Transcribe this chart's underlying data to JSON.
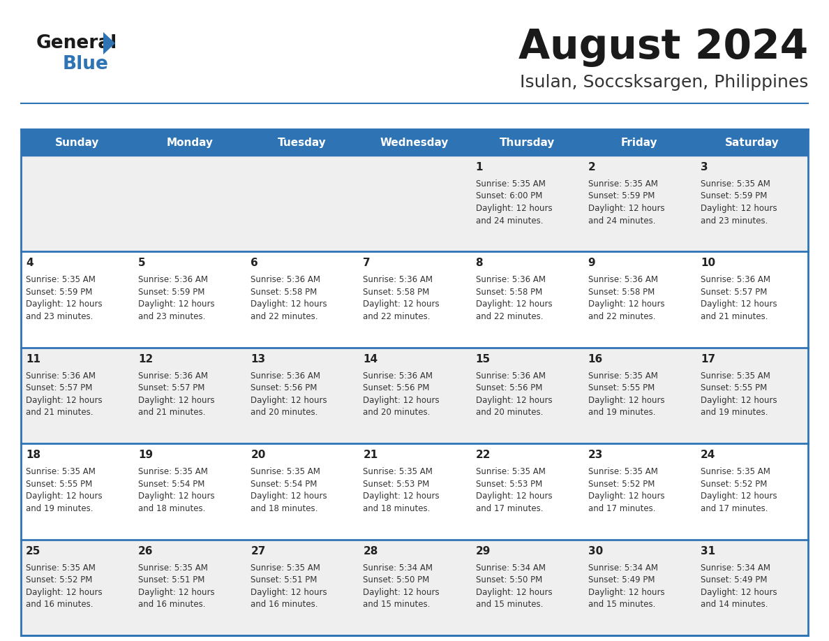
{
  "title": "August 2024",
  "subtitle": "Isulan, Soccsksargen, Philippines",
  "days_of_week": [
    "Sunday",
    "Monday",
    "Tuesday",
    "Wednesday",
    "Thursday",
    "Friday",
    "Saturday"
  ],
  "header_bg": "#2E74B5",
  "header_text": "#FFFFFF",
  "row_bg_odd": "#EFEFEF",
  "row_bg_even": "#FFFFFF",
  "cell_border": "#2E74B5",
  "day_num_color": "#222222",
  "text_color": "#333333",
  "title_color": "#1a1a1a",
  "subtitle_color": "#333333",
  "logo_general_color": "#1a1a1a",
  "logo_blue_color": "#2E74B5",
  "logo_triangle_color": "#2E74B5",
  "calendar": [
    [
      {
        "day": null,
        "sunrise": null,
        "sunset": null,
        "daylight_hours": null,
        "daylight_mins": null
      },
      {
        "day": null,
        "sunrise": null,
        "sunset": null,
        "daylight_hours": null,
        "daylight_mins": null
      },
      {
        "day": null,
        "sunrise": null,
        "sunset": null,
        "daylight_hours": null,
        "daylight_mins": null
      },
      {
        "day": null,
        "sunrise": null,
        "sunset": null,
        "daylight_hours": null,
        "daylight_mins": null
      },
      {
        "day": 1,
        "sunrise": "5:35 AM",
        "sunset": "6:00 PM",
        "daylight_hours": "12 hours",
        "daylight_mins": "and 24 minutes."
      },
      {
        "day": 2,
        "sunrise": "5:35 AM",
        "sunset": "5:59 PM",
        "daylight_hours": "12 hours",
        "daylight_mins": "and 24 minutes."
      },
      {
        "day": 3,
        "sunrise": "5:35 AM",
        "sunset": "5:59 PM",
        "daylight_hours": "12 hours",
        "daylight_mins": "and 23 minutes."
      }
    ],
    [
      {
        "day": 4,
        "sunrise": "5:35 AM",
        "sunset": "5:59 PM",
        "daylight_hours": "12 hours",
        "daylight_mins": "and 23 minutes."
      },
      {
        "day": 5,
        "sunrise": "5:36 AM",
        "sunset": "5:59 PM",
        "daylight_hours": "12 hours",
        "daylight_mins": "and 23 minutes."
      },
      {
        "day": 6,
        "sunrise": "5:36 AM",
        "sunset": "5:58 PM",
        "daylight_hours": "12 hours",
        "daylight_mins": "and 22 minutes."
      },
      {
        "day": 7,
        "sunrise": "5:36 AM",
        "sunset": "5:58 PM",
        "daylight_hours": "12 hours",
        "daylight_mins": "and 22 minutes."
      },
      {
        "day": 8,
        "sunrise": "5:36 AM",
        "sunset": "5:58 PM",
        "daylight_hours": "12 hours",
        "daylight_mins": "and 22 minutes."
      },
      {
        "day": 9,
        "sunrise": "5:36 AM",
        "sunset": "5:58 PM",
        "daylight_hours": "12 hours",
        "daylight_mins": "and 22 minutes."
      },
      {
        "day": 10,
        "sunrise": "5:36 AM",
        "sunset": "5:57 PM",
        "daylight_hours": "12 hours",
        "daylight_mins": "and 21 minutes."
      }
    ],
    [
      {
        "day": 11,
        "sunrise": "5:36 AM",
        "sunset": "5:57 PM",
        "daylight_hours": "12 hours",
        "daylight_mins": "and 21 minutes."
      },
      {
        "day": 12,
        "sunrise": "5:36 AM",
        "sunset": "5:57 PM",
        "daylight_hours": "12 hours",
        "daylight_mins": "and 21 minutes."
      },
      {
        "day": 13,
        "sunrise": "5:36 AM",
        "sunset": "5:56 PM",
        "daylight_hours": "12 hours",
        "daylight_mins": "and 20 minutes."
      },
      {
        "day": 14,
        "sunrise": "5:36 AM",
        "sunset": "5:56 PM",
        "daylight_hours": "12 hours",
        "daylight_mins": "and 20 minutes."
      },
      {
        "day": 15,
        "sunrise": "5:36 AM",
        "sunset": "5:56 PM",
        "daylight_hours": "12 hours",
        "daylight_mins": "and 20 minutes."
      },
      {
        "day": 16,
        "sunrise": "5:35 AM",
        "sunset": "5:55 PM",
        "daylight_hours": "12 hours",
        "daylight_mins": "and 19 minutes."
      },
      {
        "day": 17,
        "sunrise": "5:35 AM",
        "sunset": "5:55 PM",
        "daylight_hours": "12 hours",
        "daylight_mins": "and 19 minutes."
      }
    ],
    [
      {
        "day": 18,
        "sunrise": "5:35 AM",
        "sunset": "5:55 PM",
        "daylight_hours": "12 hours",
        "daylight_mins": "and 19 minutes."
      },
      {
        "day": 19,
        "sunrise": "5:35 AM",
        "sunset": "5:54 PM",
        "daylight_hours": "12 hours",
        "daylight_mins": "and 18 minutes."
      },
      {
        "day": 20,
        "sunrise": "5:35 AM",
        "sunset": "5:54 PM",
        "daylight_hours": "12 hours",
        "daylight_mins": "and 18 minutes."
      },
      {
        "day": 21,
        "sunrise": "5:35 AM",
        "sunset": "5:53 PM",
        "daylight_hours": "12 hours",
        "daylight_mins": "and 18 minutes."
      },
      {
        "day": 22,
        "sunrise": "5:35 AM",
        "sunset": "5:53 PM",
        "daylight_hours": "12 hours",
        "daylight_mins": "and 17 minutes."
      },
      {
        "day": 23,
        "sunrise": "5:35 AM",
        "sunset": "5:52 PM",
        "daylight_hours": "12 hours",
        "daylight_mins": "and 17 minutes."
      },
      {
        "day": 24,
        "sunrise": "5:35 AM",
        "sunset": "5:52 PM",
        "daylight_hours": "12 hours",
        "daylight_mins": "and 17 minutes."
      }
    ],
    [
      {
        "day": 25,
        "sunrise": "5:35 AM",
        "sunset": "5:52 PM",
        "daylight_hours": "12 hours",
        "daylight_mins": "and 16 minutes."
      },
      {
        "day": 26,
        "sunrise": "5:35 AM",
        "sunset": "5:51 PM",
        "daylight_hours": "12 hours",
        "daylight_mins": "and 16 minutes."
      },
      {
        "day": 27,
        "sunrise": "5:35 AM",
        "sunset": "5:51 PM",
        "daylight_hours": "12 hours",
        "daylight_mins": "and 16 minutes."
      },
      {
        "day": 28,
        "sunrise": "5:34 AM",
        "sunset": "5:50 PM",
        "daylight_hours": "12 hours",
        "daylight_mins": "and 15 minutes."
      },
      {
        "day": 29,
        "sunrise": "5:34 AM",
        "sunset": "5:50 PM",
        "daylight_hours": "12 hours",
        "daylight_mins": "and 15 minutes."
      },
      {
        "day": 30,
        "sunrise": "5:34 AM",
        "sunset": "5:49 PM",
        "daylight_hours": "12 hours",
        "daylight_mins": "and 15 minutes."
      },
      {
        "day": 31,
        "sunrise": "5:34 AM",
        "sunset": "5:49 PM",
        "daylight_hours": "12 hours",
        "daylight_mins": "and 14 minutes."
      }
    ]
  ]
}
